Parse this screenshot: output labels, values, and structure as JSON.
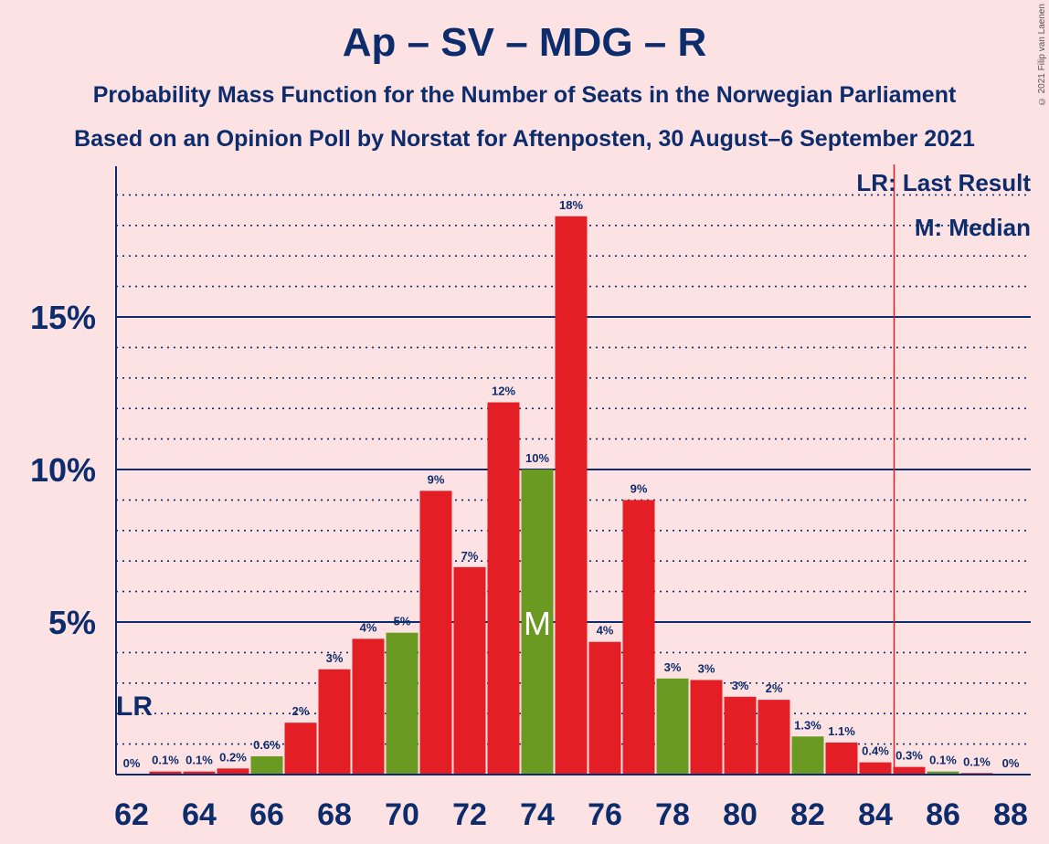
{
  "title": "Ap – SV – MDG – R",
  "subtitle1": "Probability Mass Function for the Number of Seats in the Norwegian Parliament",
  "subtitle2": "Based on an Opinion Poll by Norstat for Aftenposten, 30 August–6 September 2021",
  "copyright": "© 2021 Filip van Laenen",
  "legend": {
    "last_result": "LR: Last Result",
    "median": "M: Median"
  },
  "markers": {
    "last_result_label": "LR",
    "last_result_seat": 85,
    "median_label": "M",
    "median_seat": 74
  },
  "colors": {
    "bar_red": "#e31e24",
    "bar_green": "#6b9a23",
    "text": "#0c2c6c",
    "background": "#fde2e4",
    "lr_line": "#e31e24"
  },
  "chart_data": {
    "type": "bar",
    "x": [
      62,
      63,
      64,
      65,
      66,
      67,
      68,
      69,
      70,
      71,
      72,
      73,
      74,
      75,
      76,
      77,
      78,
      79,
      80,
      81,
      82,
      83,
      84,
      85,
      86,
      87,
      88
    ],
    "values": [
      0,
      0.1,
      0.1,
      0.2,
      0.6,
      1.7,
      3.45,
      4.45,
      4.65,
      9.3,
      6.8,
      12.2,
      10.0,
      18.3,
      4.35,
      9.0,
      3.15,
      3.1,
      2.55,
      2.45,
      1.25,
      1.05,
      0.4,
      0.25,
      0.1,
      0.05,
      0
    ],
    "labels": [
      "0%",
      "0.1%",
      "0.1%",
      "0.2%",
      "0.6%",
      "2%",
      "3%",
      "4%",
      "5%",
      "9%",
      "7%",
      "12%",
      "10%",
      "18%",
      "4%",
      "9%",
      "3%",
      "3%",
      "3%",
      "2%",
      "1.3%",
      "1.1%",
      "0.4%",
      "0.3%",
      "0.1%",
      "0.1%",
      "0%"
    ],
    "colors": [
      "red",
      "red",
      "red",
      "red",
      "green",
      "red",
      "red",
      "red",
      "green",
      "red",
      "red",
      "red",
      "green",
      "red",
      "red",
      "red",
      "green",
      "red",
      "red",
      "red",
      "green",
      "red",
      "red",
      "red",
      "green",
      "red",
      "red"
    ],
    "x_tick_labels": [
      "62",
      "64",
      "66",
      "68",
      "70",
      "72",
      "74",
      "76",
      "78",
      "80",
      "82",
      "84",
      "86",
      "88"
    ],
    "y_tick_labels": [
      "5%",
      "10%",
      "15%"
    ],
    "y_ticks": [
      5,
      10,
      15
    ],
    "ylim": [
      0,
      20
    ]
  }
}
